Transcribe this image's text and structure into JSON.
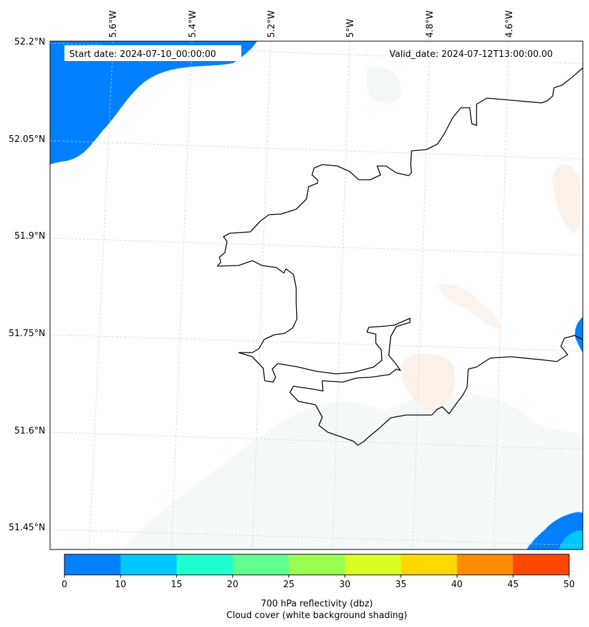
{
  "map": {
    "start_date_label": "Start date: 2024-07-10_00:00:00",
    "valid_date_label": "Valid_date: 2024-07-12T13:00:00.00",
    "lat_labels": [
      "52.2°N",
      "52.05°N",
      "51.9°N",
      "51.75°N",
      "51.6°N",
      "51.45°N"
    ],
    "lon_labels": [
      "5.6°W",
      "5.4°W",
      "5.2°W",
      "5°W",
      "4.8°W",
      "4.6°W"
    ]
  },
  "colorbar": {
    "ticks": [
      "0",
      "10",
      "15",
      "20",
      "25",
      "30",
      "35",
      "40",
      "45",
      "50"
    ],
    "colors": [
      "#0080ff",
      "#00c8ff",
      "#20ffd0",
      "#60ff90",
      "#98ff50",
      "#d8ff20",
      "#ffd800",
      "#ff8c00",
      "#ff4800"
    ],
    "label_line1": "700 hPa reflectivity (dbz)",
    "label_line2": "Cloud cover (white background shading)"
  }
}
